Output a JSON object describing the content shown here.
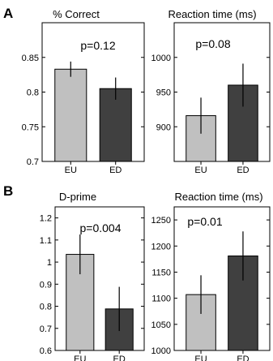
{
  "figure": {
    "panel_labels": [
      "A",
      "B"
    ]
  },
  "chart_data": [
    {
      "type": "bar",
      "title": "% Correct",
      "categories": [
        "EU",
        "ED"
      ],
      "values": [
        0.833,
        0.805
      ],
      "error": [
        0.011,
        0.016
      ],
      "colors": [
        "#c0c0c0",
        "#404040"
      ],
      "ylim": [
        0.7,
        0.9
      ],
      "yticks": [
        "0.7",
        "0.75",
        "0.8",
        "0.85"
      ],
      "annotation": "p=0.12",
      "xlabel": "",
      "ylabel": ""
    },
    {
      "type": "bar",
      "title": "Reaction time (ms)",
      "categories": [
        "EU",
        "ED"
      ],
      "values": [
        916,
        960
      ],
      "error": [
        26,
        31
      ],
      "colors": [
        "#c0c0c0",
        "#404040"
      ],
      "ylim": [
        850,
        1050
      ],
      "yticks": [
        "900",
        "950",
        "1000"
      ],
      "annotation": "p=0.08",
      "xlabel": "",
      "ylabel": ""
    },
    {
      "type": "bar",
      "title": "D-prime",
      "categories": [
        "EU",
        "ED"
      ],
      "values": [
        1.035,
        0.788
      ],
      "error": [
        0.09,
        0.1
      ],
      "colors": [
        "#c0c0c0",
        "#404040"
      ],
      "ylim": [
        0.6,
        1.25
      ],
      "yticks": [
        "0.6",
        "0.7",
        "0.8",
        "0.9",
        "1",
        "1.1",
        "1.2"
      ],
      "annotation": "p=0.004",
      "xlabel": "",
      "ylabel": ""
    },
    {
      "type": "bar",
      "title": "Reaction time (ms)",
      "categories": [
        "EU",
        "ED"
      ],
      "values": [
        1107,
        1181
      ],
      "error": [
        37,
        47
      ],
      "colors": [
        "#c0c0c0",
        "#404040"
      ],
      "ylim": [
        1000,
        1275
      ],
      "yticks": [
        "1000",
        "1050",
        "1100",
        "1150",
        "1200",
        "1250"
      ],
      "annotation": "p=0.01",
      "xlabel": "",
      "ylabel": ""
    }
  ]
}
